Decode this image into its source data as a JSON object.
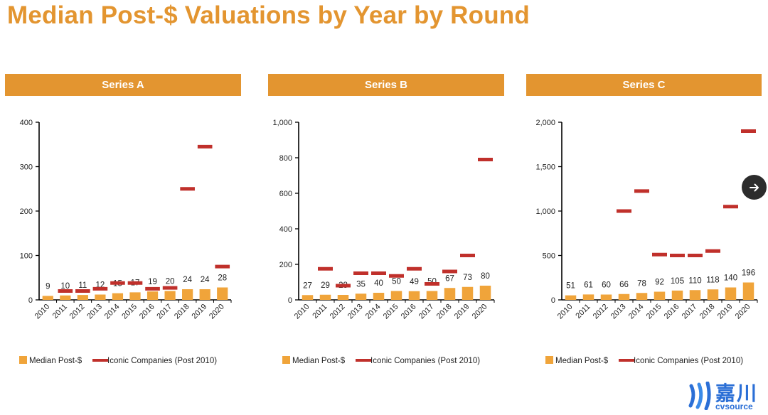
{
  "title": "Median Post-$ Valuations by Year by Round",
  "colors": {
    "accent": "#e39530",
    "bar": "#f0a43a",
    "iconic": "#c0302b"
  },
  "chart_data": [
    {
      "type": "bar",
      "title": "Series A",
      "categories": [
        "2010",
        "2011",
        "2012",
        "2013",
        "2014",
        "2015",
        "2016",
        "2017",
        "2018",
        "2019",
        "2020"
      ],
      "series": [
        {
          "name": "Median Post-$",
          "values": [
            9,
            10,
            11,
            12,
            15,
            17,
            19,
            20,
            24,
            24,
            28
          ]
        },
        {
          "name": "Iconic Companies (Post 2010)",
          "values": [
            null,
            20,
            20,
            25,
            38,
            38,
            25,
            27,
            250,
            345,
            75
          ]
        }
      ],
      "ylim": [
        0,
        400
      ],
      "yticks": [
        0,
        100,
        200,
        300,
        400
      ],
      "ytick_labels": [
        "0",
        "100",
        "200",
        "300",
        "400"
      ]
    },
    {
      "type": "bar",
      "title": "Series B",
      "categories": [
        "2010",
        "2011",
        "2012",
        "2013",
        "2014",
        "2015",
        "2016",
        "2017",
        "2018",
        "2019",
        "2020"
      ],
      "series": [
        {
          "name": "Median Post-$",
          "values": [
            27,
            29,
            28,
            35,
            40,
            50,
            49,
            50,
            67,
            73,
            80
          ]
        },
        {
          "name": "Iconic Companies (Post 2010)",
          "values": [
            null,
            175,
            80,
            150,
            150,
            135,
            175,
            90,
            160,
            250,
            790
          ]
        }
      ],
      "ylim": [
        0,
        1000
      ],
      "yticks": [
        0,
        200,
        400,
        600,
        800,
        1000
      ],
      "ytick_labels": [
        "0",
        "200",
        "400",
        "600",
        "800",
        "1,000"
      ]
    },
    {
      "type": "bar",
      "title": "Series C",
      "categories": [
        "2010",
        "2011",
        "2012",
        "2013",
        "2014",
        "2015",
        "2016",
        "2017",
        "2018",
        "2019",
        "2020"
      ],
      "series": [
        {
          "name": "Median Post-$",
          "values": [
            51,
            61,
            60,
            66,
            78,
            92,
            105,
            110,
            118,
            140,
            196
          ]
        },
        {
          "name": "Iconic Companies (Post 2010)",
          "values": [
            null,
            null,
            null,
            1000,
            1225,
            510,
            500,
            500,
            550,
            1050,
            1900
          ]
        }
      ],
      "ylim": [
        0,
        2000
      ],
      "yticks": [
        0,
        500,
        1000,
        1500,
        2000
      ],
      "ytick_labels": [
        "0",
        "500",
        "1,000",
        "1,500",
        "2,000"
      ]
    }
  ],
  "legend": {
    "bar_label": "Median Post-$",
    "iconic_label": "Iconic Companies (Post 2010)"
  },
  "nav": {
    "next_icon": "arrow-right-icon"
  },
  "logo": {
    "cn": "嘉川",
    "en": "cvsource"
  }
}
